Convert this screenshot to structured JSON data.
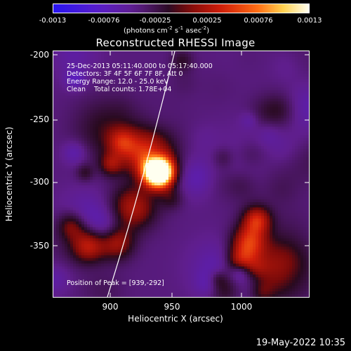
{
  "colorbar": {
    "ticks": [
      "-0.0013",
      "-0.00076",
      "-0.00025",
      "0.00025",
      "0.00076",
      "0.0013"
    ],
    "unit_prefix": "(photons cm",
    "unit_exp1": "-2",
    "unit_mid1": " s",
    "unit_exp2": "-1",
    "unit_mid2": " asec",
    "unit_exp3": "-2",
    "unit_suffix": ")"
  },
  "title": "Reconstructed RHESSI Image",
  "info": {
    "line1": "25-Dec-2013 05:11:40.000 to 05:17:40.000",
    "line2": "Detectors: 3F 4F 5F 6F 7F 8F, Att 0",
    "line3": "Energy Range: 12.0 - 25.0 keV",
    "line4": "Clean    Total counts: 1.78E+04",
    "peak": "Position of Peak = [939,-292]"
  },
  "axes": {
    "xlabel": "Heliocentric X (arcsec)",
    "ylabel": "Heliocentric Y (arcsec)",
    "xticks": [
      "900",
      "950",
      "1000"
    ],
    "yticks": [
      "-200",
      "-250",
      "-300",
      "-350"
    ]
  },
  "timestamp": "19-May-2022 10:35",
  "colors": {
    "background": "#000000",
    "frame": "#ffffff"
  }
}
